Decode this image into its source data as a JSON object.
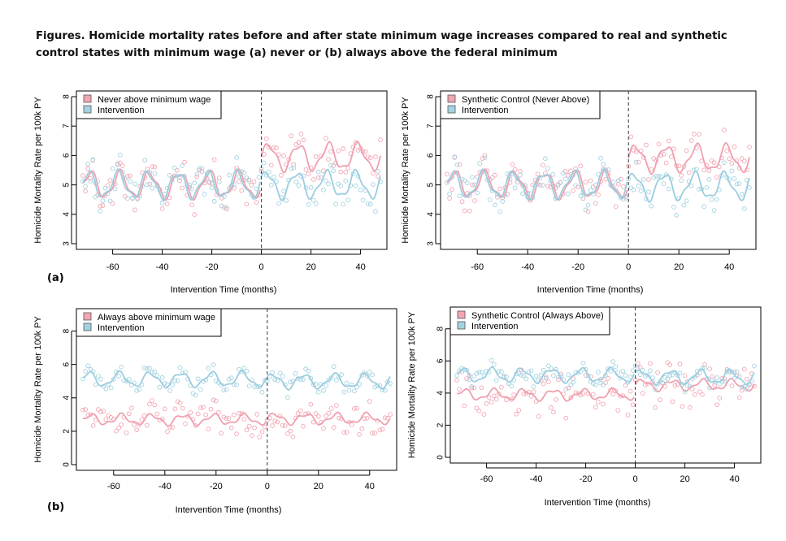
{
  "figure": {
    "title": "Figures. Homicide mortality rates before and after state minimum wage increases compared to real and synthetic control states with minimum wage (a) never or (b) always above the federal minimum",
    "panel_a_label": "(a)",
    "panel_b_label": "(b)"
  },
  "colors": {
    "comparison": "#f2a6b2",
    "intervention": "#a3d2e0",
    "comparison_line": "#f0a0ae",
    "intervention_line": "#9ccde0",
    "axis": "#000000",
    "dashed": "#333333"
  },
  "chart_data": [
    {
      "id": "a-left",
      "type": "line",
      "ylabel": "Homicide Mortality Rate per 100k PY",
      "xlabel": "Intervention Time (months)",
      "xlim": [
        -72,
        48
      ],
      "ylim": [
        3,
        8
      ],
      "xticks": [
        -60,
        -40,
        -20,
        0,
        20,
        40
      ],
      "yticks": [
        3,
        4,
        5,
        6,
        7,
        8
      ],
      "vline": 0,
      "grid": false,
      "legend_position": "top-left",
      "series": [
        {
          "name": "Never above minimum wage",
          "role": "comparison",
          "pre_level": 5.0,
          "post_level": 5.95,
          "amplitude": 0.42,
          "scatter_spread": 0.75
        },
        {
          "name": "Intervention",
          "role": "intervention",
          "pre_level": 5.0,
          "post_level": 5.0,
          "amplitude": 0.42,
          "scatter_spread": 0.7
        }
      ]
    },
    {
      "id": "a-right",
      "type": "line",
      "ylabel": "Homicide Mortality Rate per 100k PY",
      "xlabel": "Intervention Time (months)",
      "xlim": [
        -72,
        48
      ],
      "ylim": [
        3,
        8
      ],
      "xticks": [
        -60,
        -40,
        -20,
        0,
        20,
        40
      ],
      "yticks": [
        3,
        4,
        5,
        6,
        7,
        8
      ],
      "vline": 0,
      "grid": false,
      "legend_position": "top-left",
      "series": [
        {
          "name": "Synthetic Control (Never Above)",
          "role": "comparison",
          "pre_level": 5.0,
          "post_level": 5.9,
          "amplitude": 0.42,
          "scatter_spread": 0.75
        },
        {
          "name": "Intervention",
          "role": "intervention",
          "pre_level": 5.0,
          "post_level": 4.95,
          "amplitude": 0.42,
          "scatter_spread": 0.7
        }
      ]
    },
    {
      "id": "b-left",
      "type": "line",
      "ylabel": "Homicide Mortality Rate per 100k PY",
      "xlabel": "Intervention Time (months)",
      "xlim": [
        -72,
        48
      ],
      "ylim": [
        0,
        9
      ],
      "xticks": [
        -60,
        -40,
        -20,
        0,
        20,
        40
      ],
      "yticks": [
        0,
        2,
        4,
        6,
        8
      ],
      "vline": 0,
      "grid": false,
      "legend_position": "top-left",
      "series": [
        {
          "name": "Always above minimum wage",
          "role": "comparison",
          "pre_level": 2.7,
          "post_level": 2.75,
          "amplitude": 0.28,
          "scatter_spread": 1.1
        },
        {
          "name": "Intervention",
          "role": "intervention",
          "pre_level": 5.1,
          "post_level": 5.0,
          "amplitude": 0.4,
          "scatter_spread": 0.6
        }
      ]
    },
    {
      "id": "b-right",
      "type": "line",
      "ylabel": "Homicide Mortality Rate per 100k PY",
      "xlabel": "Intervention Time (months)",
      "xlim": [
        -72,
        48
      ],
      "ylim": [
        0,
        9
      ],
      "xticks": [
        -60,
        -40,
        -20,
        0,
        20,
        40
      ],
      "yticks": [
        0,
        2,
        4,
        6,
        8
      ],
      "vline": 0,
      "grid": false,
      "legend_position": "top-left",
      "series": [
        {
          "name": "Synthetic Control (Always Above)",
          "role": "comparison",
          "pre_level": 3.9,
          "post_level": 4.5,
          "amplitude": 0.3,
          "scatter_spread": 1.6
        },
        {
          "name": "Intervention",
          "role": "intervention",
          "pre_level": 5.1,
          "post_level": 5.0,
          "amplitude": 0.4,
          "scatter_spread": 0.6
        }
      ]
    }
  ]
}
